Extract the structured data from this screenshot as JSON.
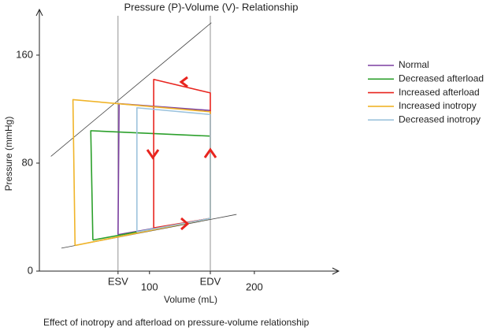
{
  "chart_data": {
    "type": "pv-loop",
    "title": "Pressure (P)-Volume (V)- Relationship",
    "x_label": "Volume (mL)",
    "y_label": "Pressure (mmHg)",
    "caption": "Effect of inotropy and afterload on pressure-volume relationship",
    "xlim": [
      -5,
      280
    ],
    "ylim": [
      0,
      195
    ],
    "xticks": [
      {
        "value": 70,
        "label": "ESV"
      },
      100,
      {
        "value": 158,
        "label": "EDV"
      },
      200
    ],
    "yticks": [
      0,
      80,
      160
    ],
    "reference_x": [
      70,
      158
    ],
    "reference_lines": [
      {
        "x": [
          6,
          159
        ],
        "y": [
          85,
          184
        ]
      },
      {
        "x": [
          16,
          183
        ],
        "y": [
          17,
          42
        ]
      }
    ],
    "series": [
      {
        "name": "Normal",
        "color": "#7b3fa0",
        "x": [
          70,
          71,
          158,
          158,
          70
        ],
        "y": [
          27,
          124,
          119,
          39,
          27
        ]
      },
      {
        "name": "Decreased afterload",
        "color": "#2ca02c",
        "x": [
          46,
          44,
          158,
          158,
          46
        ],
        "y": [
          23,
          104,
          100,
          39,
          23
        ]
      },
      {
        "name": "Increased afterload",
        "color": "#e8251f",
        "x": [
          104,
          104,
          158,
          158,
          104
        ],
        "y": [
          32,
          142,
          132,
          39,
          32
        ]
      },
      {
        "name": "Increased inotropy",
        "color": "#f0b429",
        "x": [
          29,
          27,
          158,
          158,
          29
        ],
        "y": [
          19,
          127,
          118,
          39,
          19
        ]
      },
      {
        "name": "Decreased inotropy",
        "color": "#9dc3dd",
        "x": [
          88,
          88,
          158,
          158,
          88
        ],
        "y": [
          29,
          121,
          116,
          39,
          29
        ]
      }
    ]
  }
}
